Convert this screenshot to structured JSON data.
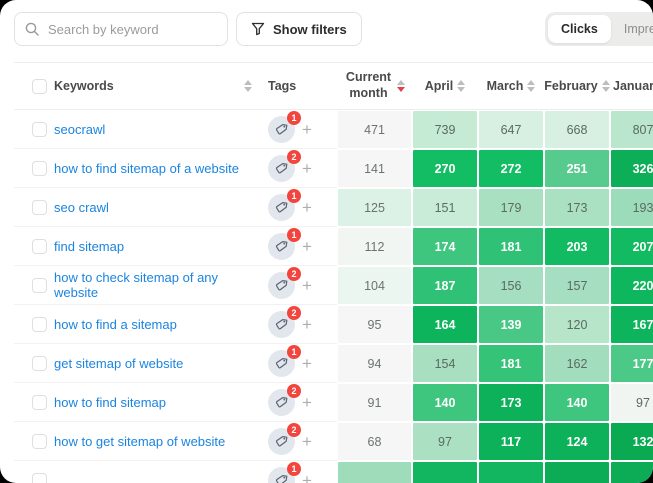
{
  "toolbar": {
    "search_placeholder": "Search by keyword",
    "filters_label": "Show filters",
    "toggle": {
      "options": [
        "Clicks",
        "Impressions"
      ],
      "active": "Clicks"
    }
  },
  "colors": {
    "accent_green": "#12bd63",
    "badge_red": "#f2453d",
    "keyword_blue": "#1b84e0",
    "neutral_cell": "#f5f6f5"
  },
  "table": {
    "header": {
      "keywords": "Keywords",
      "tags": "Tags",
      "current": "Current month",
      "months": [
        "April",
        "March",
        "February",
        "January"
      ],
      "sort_active_column": "Current month",
      "sort_direction": "desc"
    },
    "rows": [
      {
        "keyword": "seocrawl",
        "tags": 1,
        "current": {
          "v": "471",
          "bg": "#f5f6f5"
        },
        "cells": [
          {
            "v": "739",
            "bg": "#c6ebd5",
            "fg": "dark"
          },
          {
            "v": "647",
            "bg": "#d7f0e1",
            "fg": "dark"
          },
          {
            "v": "668",
            "bg": "#d7f0e1",
            "fg": "dark"
          },
          {
            "v": "807",
            "bg": "#b9e6cc",
            "fg": "dark"
          }
        ]
      },
      {
        "keyword": "how to find sitemap of a website",
        "tags": 2,
        "current": {
          "v": "141",
          "bg": "#f5f6f5"
        },
        "cells": [
          {
            "v": "270",
            "bg": "#12bd63",
            "fg": "light"
          },
          {
            "v": "272",
            "bg": "#12bd63",
            "fg": "light"
          },
          {
            "v": "251",
            "bg": "#57cb8e",
            "fg": "light"
          },
          {
            "v": "326",
            "bg": "#0cae57",
            "fg": "light"
          }
        ]
      },
      {
        "keyword": "seo crawl",
        "tags": 1,
        "current": {
          "v": "125",
          "bg": "#ddf2e6"
        },
        "cells": [
          {
            "v": "151",
            "bg": "#c9ecd8",
            "fg": "dark"
          },
          {
            "v": "179",
            "bg": "#a9e0c2",
            "fg": "dark"
          },
          {
            "v": "173",
            "bg": "#abe1c3",
            "fg": "dark"
          },
          {
            "v": "193",
            "bg": "#9cdcba",
            "fg": "dark"
          }
        ]
      },
      {
        "keyword": "find sitemap",
        "tags": 1,
        "current": {
          "v": "112",
          "bg": "#f2f6f3"
        },
        "cells": [
          {
            "v": "174",
            "bg": "#3ec67f",
            "fg": "light"
          },
          {
            "v": "181",
            "bg": "#2fc276",
            "fg": "light"
          },
          {
            "v": "203",
            "bg": "#12bb61",
            "fg": "light"
          },
          {
            "v": "207",
            "bg": "#12bb61",
            "fg": "light"
          }
        ]
      },
      {
        "keyword": "how to check sitemap of any website",
        "tags": 2,
        "current": {
          "v": "104",
          "bg": "#eaf6ef"
        },
        "cells": [
          {
            "v": "187",
            "bg": "#2fc276",
            "fg": "light"
          },
          {
            "v": "156",
            "bg": "#a5dec0",
            "fg": "dark"
          },
          {
            "v": "157",
            "bg": "#a5dec0",
            "fg": "dark"
          },
          {
            "v": "220",
            "bg": "#0eb75e",
            "fg": "light"
          }
        ]
      },
      {
        "keyword": "how to find a sitemap",
        "tags": 2,
        "current": {
          "v": "95",
          "bg": "#f5f6f5"
        },
        "cells": [
          {
            "v": "164",
            "bg": "#0db45c",
            "fg": "light"
          },
          {
            "v": "139",
            "bg": "#49c885",
            "fg": "light"
          },
          {
            "v": "120",
            "bg": "#b7e5ca",
            "fg": "dark"
          },
          {
            "v": "167",
            "bg": "#0db45c",
            "fg": "light"
          }
        ]
      },
      {
        "keyword": "get sitemap of website",
        "tags": 1,
        "current": {
          "v": "94",
          "bg": "#f5f6f5"
        },
        "cells": [
          {
            "v": "154",
            "bg": "#a8dfc1",
            "fg": "dark"
          },
          {
            "v": "181",
            "bg": "#35c377",
            "fg": "light"
          },
          {
            "v": "162",
            "bg": "#a2ddbd",
            "fg": "dark"
          },
          {
            "v": "177",
            "bg": "#4cc887",
            "fg": "light"
          }
        ]
      },
      {
        "keyword": "how to find sitemap",
        "tags": 2,
        "current": {
          "v": "91",
          "bg": "#f5f6f5"
        },
        "cells": [
          {
            "v": "140",
            "bg": "#3ec67f",
            "fg": "light"
          },
          {
            "v": "173",
            "bg": "#0db159",
            "fg": "light"
          },
          {
            "v": "140",
            "bg": "#3ec67f",
            "fg": "light"
          },
          {
            "v": "97",
            "bg": "#f1f5f2",
            "fg": "dark"
          }
        ]
      },
      {
        "keyword": "how to get sitemap of website",
        "tags": 2,
        "current": {
          "v": "68",
          "bg": "#f5f6f5"
        },
        "cells": [
          {
            "v": "97",
            "bg": "#abe0c3",
            "fg": "dark"
          },
          {
            "v": "117",
            "bg": "#0db159",
            "fg": "light"
          },
          {
            "v": "124",
            "bg": "#0db159",
            "fg": "light"
          },
          {
            "v": "132",
            "bg": "#0aaa53",
            "fg": "light"
          }
        ]
      },
      {
        "keyword": "",
        "tags": 1,
        "current": {
          "v": "",
          "bg": "#9edcba"
        },
        "cells": [
          {
            "v": "",
            "bg": "#12b560",
            "fg": "light"
          },
          {
            "v": "",
            "bg": "#12b560",
            "fg": "light"
          },
          {
            "v": "",
            "bg": "#0cab56",
            "fg": "light"
          },
          {
            "v": "",
            "bg": "#0cab56",
            "fg": "light"
          }
        ]
      }
    ]
  }
}
